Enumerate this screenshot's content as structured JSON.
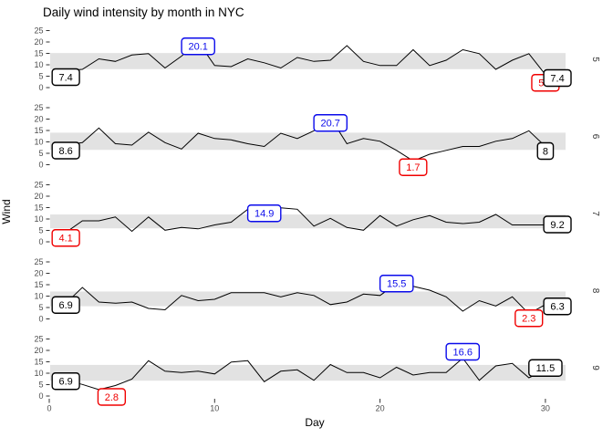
{
  "title": "Daily wind intensity by month in NYC",
  "x_axis": {
    "label": "Day",
    "ticks": [
      0,
      10,
      20,
      30
    ]
  },
  "y_axis": {
    "label": "Wind",
    "ticks": [
      0,
      5,
      10,
      15,
      20,
      25
    ]
  },
  "colors": {
    "line": "#000000",
    "band": "#E2E2E2",
    "endpoint": "#000000",
    "max": "#0B0BEB",
    "min": "#F00000",
    "axis_text": "#4D4D4D",
    "tick_mark": "#333333",
    "strip_text": "#333333",
    "label_fill": "#FFFFFF"
  },
  "chart_data": {
    "type": "line",
    "title": "Daily wind intensity by month in NYC",
    "xlabel": "Day",
    "ylabel": "Wind",
    "xlim": [
      0,
      31
    ],
    "ylim": [
      0,
      27
    ],
    "grid": false,
    "facet_strip_side": "right",
    "facets": [
      {
        "month": "5",
        "band": [
          8.09,
          15.15
        ],
        "values": [
          7.4,
          8.0,
          12.6,
          11.5,
          14.3,
          14.9,
          8.6,
          13.8,
          20.1,
          9.7,
          9.2,
          12.6,
          10.9,
          8.6,
          13.2,
          11.5,
          12.0,
          18.4,
          11.5,
          9.7,
          9.7,
          16.6,
          9.7,
          12.0,
          16.6,
          14.9,
          8.0,
          12.0,
          14.9,
          5.7,
          7.4
        ],
        "labels": [
          {
            "day": 1,
            "value": 7.4,
            "text": "7.4",
            "kind": "endpoint",
            "dy": 7
          },
          {
            "day": 9,
            "value": 20.1,
            "text": "20.1",
            "kind": "max",
            "dy": 5
          },
          {
            "day": 30,
            "value": 5.7,
            "text": "5.7",
            "kind": "min",
            "dy": 9
          },
          {
            "day": 31,
            "value": 7.4,
            "text": "7.4",
            "kind": "endpoint",
            "dy": 8
          }
        ]
      },
      {
        "month": "6",
        "band": [
          6.5,
          14.04
        ],
        "values": [
          8.6,
          9.7,
          16.1,
          9.2,
          8.6,
          14.3,
          9.7,
          6.9,
          13.8,
          11.5,
          10.9,
          9.2,
          8.0,
          13.8,
          11.5,
          14.9,
          20.7,
          9.2,
          11.5,
          10.3,
          6.3,
          1.7,
          4.6,
          6.3,
          8.0,
          8.0,
          10.3,
          11.5,
          14.9,
          8.0
        ],
        "labels": [
          {
            "day": 1,
            "value": 8.6,
            "text": "8.6",
            "kind": "endpoint",
            "dy": 6
          },
          {
            "day": 17,
            "value": 20.7,
            "text": "20.7",
            "kind": "max",
            "dy": 6
          },
          {
            "day": 22,
            "value": 1.7,
            "text": "1.7",
            "kind": "min",
            "dy": 7
          },
          {
            "day": 30,
            "value": 8.0,
            "text": "8",
            "kind": "endpoint",
            "dy": 5
          }
        ]
      },
      {
        "month": "7",
        "band": [
          5.9,
          11.98
        ],
        "values": [
          4.1,
          9.2,
          9.2,
          10.9,
          4.6,
          10.9,
          5.1,
          6.3,
          5.7,
          7.4,
          8.6,
          14.3,
          14.9,
          14.9,
          14.3,
          6.9,
          10.3,
          6.3,
          5.1,
          11.5,
          6.9,
          9.7,
          11.5,
          8.6,
          8.0,
          8.6,
          12.0,
          7.4,
          7.4,
          7.4,
          9.2
        ],
        "labels": [
          {
            "day": 1,
            "value": 4.1,
            "text": "4.1",
            "kind": "min",
            "dy": 6
          },
          {
            "day": 13,
            "value": 14.9,
            "text": "14.9",
            "kind": "max",
            "dy": 6
          },
          {
            "day": 31,
            "value": 9.2,
            "text": "9.2",
            "kind": "endpoint",
            "dy": 4
          }
        ]
      },
      {
        "month": "8",
        "band": [
          5.57,
          12.02
        ],
        "values": [
          6.9,
          13.8,
          7.4,
          6.9,
          7.4,
          4.6,
          4.0,
          10.3,
          8.0,
          8.6,
          11.5,
          11.5,
          11.5,
          9.7,
          11.5,
          10.3,
          6.3,
          7.4,
          10.9,
          10.3,
          15.5,
          14.3,
          12.6,
          9.7,
          3.4,
          8.0,
          5.7,
          9.7,
          2.3,
          6.3,
          6.3
        ],
        "labels": [
          {
            "day": 1,
            "value": 6.9,
            "text": "6.9",
            "kind": "endpoint",
            "dy": 2
          },
          {
            "day": 21,
            "value": 15.5,
            "text": "15.5",
            "kind": "max",
            "dy": 0
          },
          {
            "day": 29,
            "value": 2.3,
            "text": "2.3",
            "kind": "min",
            "dy": 5
          },
          {
            "day": 31,
            "value": 6.3,
            "text": "6.3",
            "kind": "endpoint",
            "dy": 2
          }
        ]
      },
      {
        "month": "9",
        "band": [
          6.72,
          13.64
        ],
        "values": [
          6.9,
          5.1,
          2.8,
          4.6,
          7.4,
          15.5,
          10.9,
          10.3,
          10.9,
          9.7,
          14.9,
          15.5,
          6.3,
          10.9,
          11.5,
          6.9,
          13.8,
          10.3,
          10.3,
          8.0,
          12.6,
          9.2,
          10.3,
          10.3,
          16.6,
          6.9,
          13.2,
          14.3,
          8.0,
          11.5
        ],
        "labels": [
          {
            "day": 1,
            "value": 6.9,
            "text": "6.9",
            "kind": "endpoint",
            "dy": 1
          },
          {
            "day": 3,
            "value": 2.8,
            "text": "2.8",
            "kind": "min",
            "dy": 8,
            "dx": 14
          },
          {
            "day": 25,
            "value": 16.6,
            "text": "16.6",
            "kind": "max",
            "dy": -7
          },
          {
            "day": 30,
            "value": 11.5,
            "text": "11.5",
            "kind": "endpoint",
            "dy": -2
          }
        ]
      }
    ]
  }
}
